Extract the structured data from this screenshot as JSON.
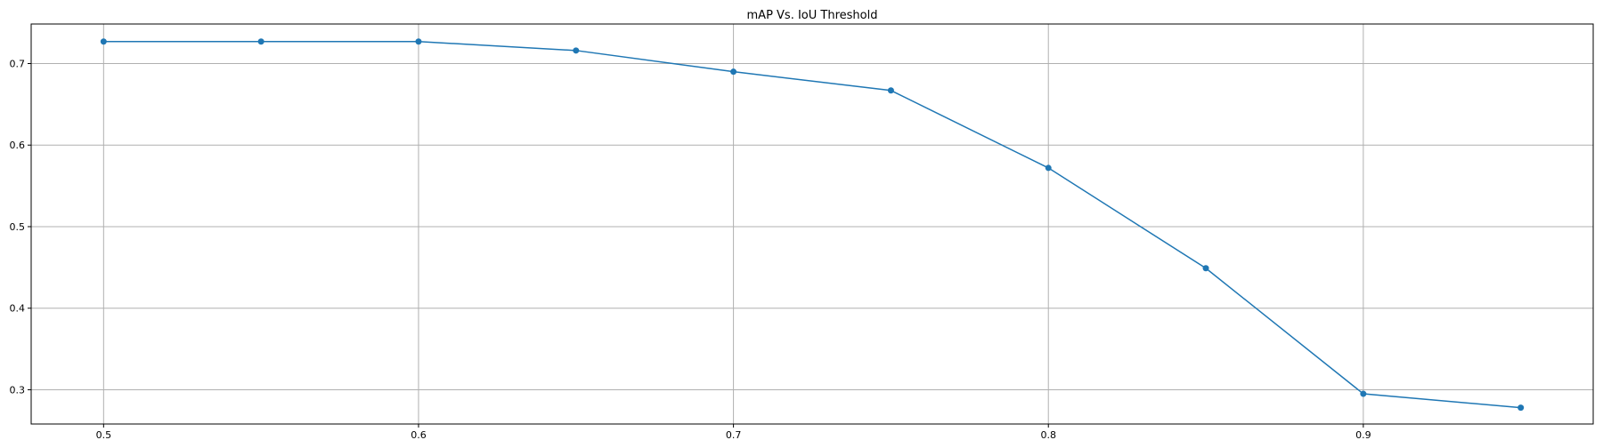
{
  "chart_data": {
    "type": "line",
    "title": "mAP Vs. IoU Threshold",
    "xlabel": "",
    "ylabel": "",
    "xlim": [
      0.477,
      0.973
    ],
    "ylim": [
      0.258,
      0.7485
    ],
    "xticks": [
      0.5,
      0.6,
      0.7,
      0.8,
      0.9
    ],
    "xtick_labels": [
      "0.5",
      "0.6",
      "0.7",
      "0.8",
      "0.9"
    ],
    "yticks": [
      0.3,
      0.4,
      0.5,
      0.6,
      0.7
    ],
    "ytick_labels": [
      "0.3",
      "0.4",
      "0.5",
      "0.6",
      "0.7"
    ],
    "grid": true,
    "series": [
      {
        "color": "#1f77b4",
        "marker": "circle",
        "x": [
          0.5,
          0.55,
          0.6,
          0.65,
          0.7,
          0.75,
          0.8,
          0.85,
          0.9,
          0.95
        ],
        "y": [
          0.727,
          0.727,
          0.727,
          0.716,
          0.69,
          0.667,
          0.572,
          0.449,
          0.295,
          0.278
        ]
      }
    ]
  }
}
